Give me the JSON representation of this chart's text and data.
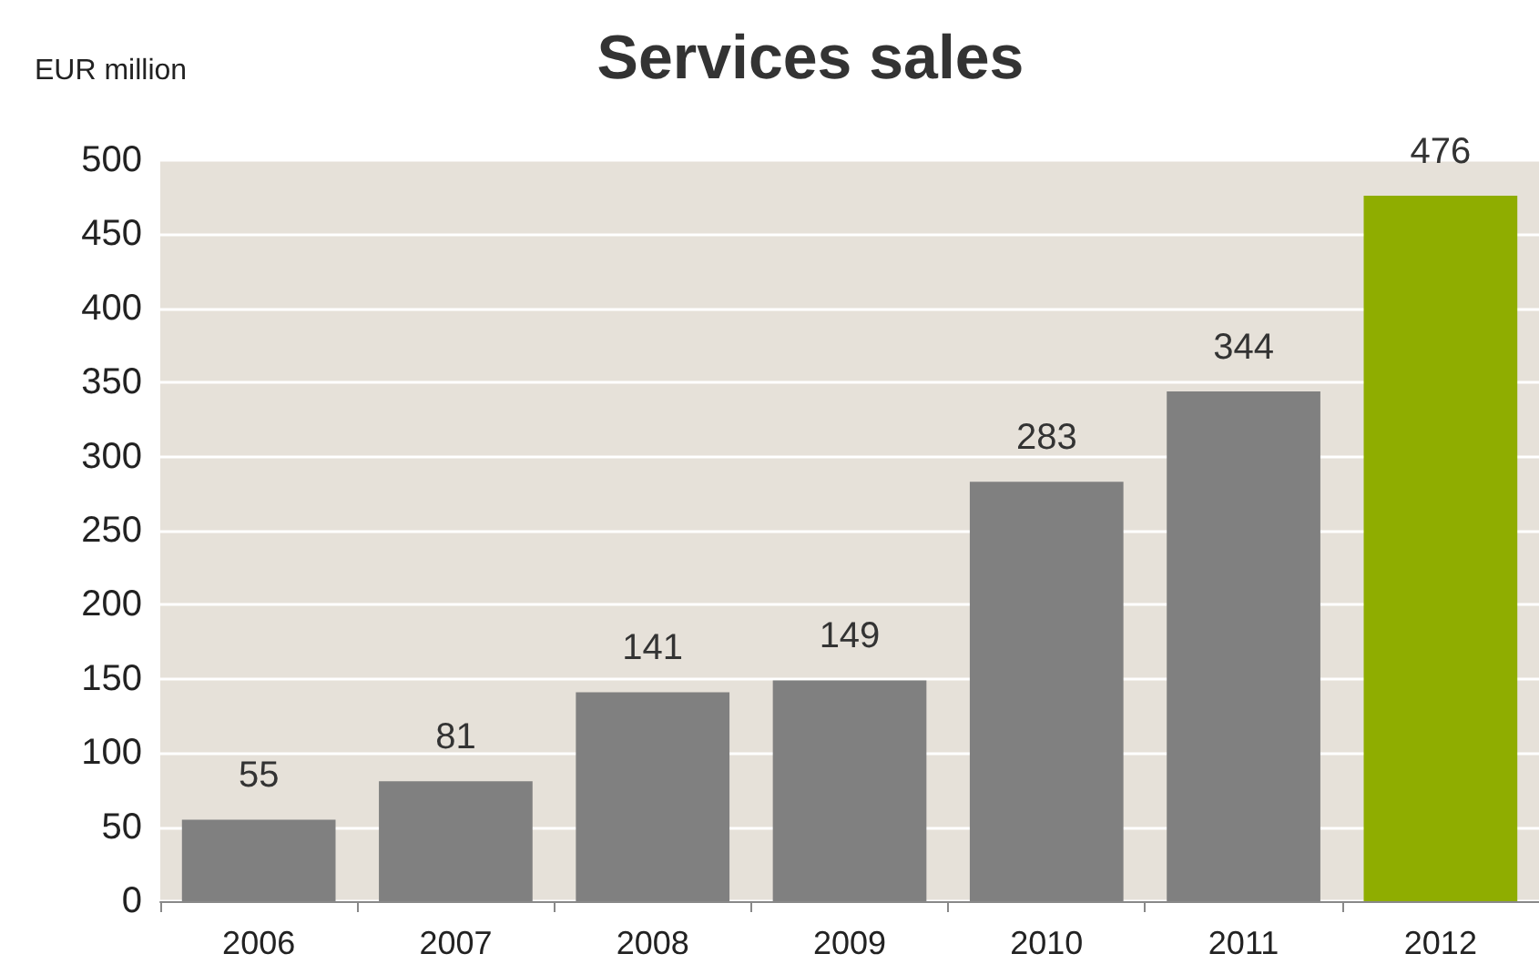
{
  "chart_data": {
    "type": "bar",
    "title": "Services sales",
    "ylabel": "EUR million",
    "categories": [
      "2006",
      "2007",
      "2008",
      "2009",
      "2010",
      "2011",
      "2012"
    ],
    "values": [
      55,
      81,
      141,
      149,
      283,
      344,
      476
    ],
    "colors": [
      "#808080",
      "#808080",
      "#808080",
      "#808080",
      "#808080",
      "#808080",
      "#8fad00"
    ],
    "ylim": [
      0,
      500
    ],
    "yticks": [
      0,
      50,
      100,
      150,
      200,
      250,
      300,
      350,
      400,
      450,
      500
    ],
    "grid": "y",
    "data_labels": true
  }
}
